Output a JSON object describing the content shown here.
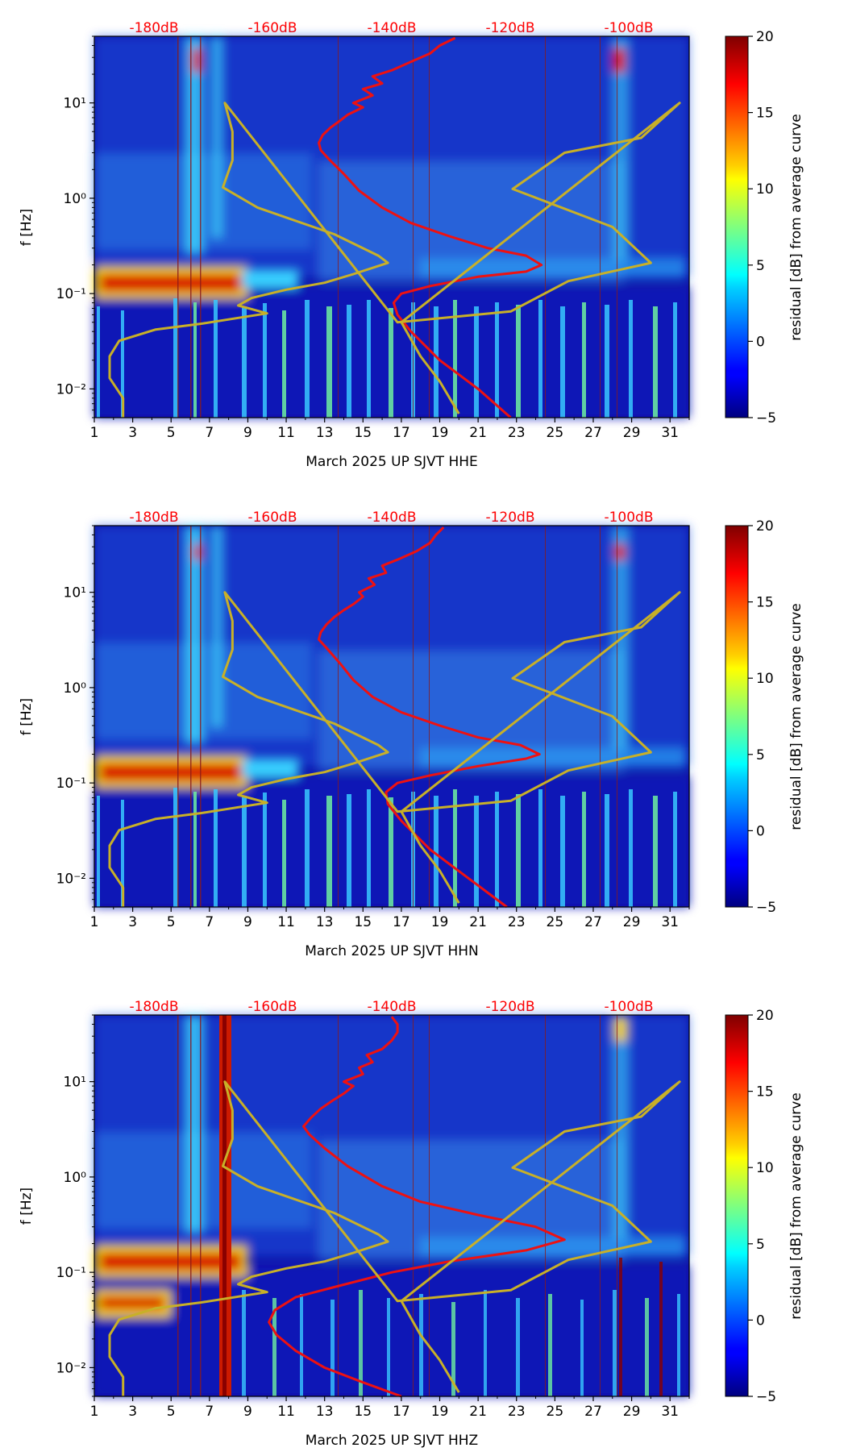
{
  "colors": {
    "noise_top_text": "#ff0000",
    "average_curve": "#ee1111",
    "model_curve": "#c8b028",
    "axis": "#000000",
    "spectrogram_background": "#00008b"
  },
  "colorbar": {
    "label": "residual [dB] from average curve",
    "ticks": [
      "20",
      "15",
      "10",
      "5",
      "0",
      "−5"
    ],
    "tick_values": [
      20,
      15,
      10,
      5,
      0,
      -5
    ],
    "range": [
      -5,
      20
    ],
    "colormap": "jet"
  },
  "chart_data": [
    {
      "type": "heatmap",
      "xlabel": "March 2025 UP SJVT  HHE",
      "ylabel": "f [Hz]",
      "x_ticks": [
        "1",
        "3",
        "5",
        "7",
        "9",
        "11",
        "13",
        "15",
        "17",
        "19",
        "21",
        "23",
        "25",
        "27",
        "29",
        "31"
      ],
      "x_range_days": [
        1,
        32
      ],
      "y_ticks": [
        "10⁻²",
        "10⁻¹",
        "10⁰",
        "10¹"
      ],
      "y_range_hz": [
        0.005,
        50
      ],
      "y_scale": "log",
      "top_labels": [
        "-180dB",
        "-160dB",
        "-140dB",
        "-120dB",
        "-100dB"
      ],
      "top_label_days": [
        5,
        11,
        17,
        23,
        29
      ],
      "grid": false,
      "series": [
        {
          "curve": "average",
          "points": [
            [
              22.7,
              0.005
            ],
            [
              21,
              0.01
            ],
            [
              19,
              0.02
            ],
            [
              17.5,
              0.04
            ],
            [
              16.8,
              0.06
            ],
            [
              16.6,
              0.08
            ],
            [
              17,
              0.1
            ],
            [
              18.5,
              0.12
            ],
            [
              21,
              0.15
            ],
            [
              23.5,
              0.17
            ],
            [
              24.3,
              0.2
            ],
            [
              23.5,
              0.25
            ],
            [
              21.5,
              0.3
            ],
            [
              19.5,
              0.4
            ],
            [
              17.5,
              0.55
            ],
            [
              16,
              0.8
            ],
            [
              14.8,
              1.2
            ],
            [
              14,
              1.8
            ],
            [
              13.2,
              2.6
            ],
            [
              12.8,
              3.2
            ],
            [
              12.7,
              3.8
            ],
            [
              12.9,
              4.6
            ],
            [
              13.3,
              5.5
            ],
            [
              13.8,
              6.5
            ],
            [
              14.2,
              7.5
            ],
            [
              15,
              9
            ],
            [
              14.5,
              10
            ],
            [
              15.5,
              12
            ],
            [
              15,
              14
            ],
            [
              16,
              16
            ],
            [
              15.5,
              19
            ],
            [
              16.5,
              22
            ],
            [
              17.5,
              27
            ],
            [
              18.5,
              33
            ],
            [
              19,
              40
            ],
            [
              19.8,
              48
            ]
          ]
        },
        {
          "curve": "model",
          "points": [
            [
              2.5,
              0.005
            ],
            [
              2.5,
              0.008
            ],
            [
              1.8,
              0.013
            ],
            [
              1.8,
              0.022
            ],
            [
              2.3,
              0.032
            ],
            [
              4.2,
              0.042
            ],
            [
              6.5,
              0.048
            ],
            [
              10,
              0.062
            ],
            [
              8.5,
              0.075
            ],
            [
              9.2,
              0.09
            ],
            [
              11,
              0.11
            ],
            [
              13,
              0.13
            ],
            [
              14.5,
              0.16
            ],
            [
              16.3,
              0.21
            ],
            [
              15.8,
              0.25
            ],
            [
              13.5,
              0.42
            ],
            [
              9.5,
              0.8
            ],
            [
              7.7,
              1.3
            ],
            [
              8.2,
              2.5
            ],
            [
              8.2,
              5
            ],
            [
              7.8,
              10
            ],
            [
              16.8,
              0.05
            ],
            [
              22.7,
              0.065
            ],
            [
              25.7,
              0.135
            ],
            [
              30,
              0.21
            ],
            [
              28,
              0.5
            ],
            [
              22.8,
              1.25
            ],
            [
              25.5,
              3
            ],
            [
              29.5,
              4.3
            ],
            [
              31.5,
              10
            ],
            [
              17,
              0.05
            ],
            [
              18,
              0.022
            ],
            [
              19,
              0.012
            ],
            [
              20,
              0.0055
            ]
          ]
        }
      ]
    },
    {
      "type": "heatmap",
      "xlabel": "March 2025 UP SJVT  HHN",
      "ylabel": "f [Hz]",
      "x_ticks": [
        "1",
        "3",
        "5",
        "7",
        "9",
        "11",
        "13",
        "15",
        "17",
        "19",
        "21",
        "23",
        "25",
        "27",
        "29",
        "31"
      ],
      "x_range_days": [
        1,
        32
      ],
      "y_ticks": [
        "10⁻²",
        "10⁻¹",
        "10⁰",
        "10¹"
      ],
      "y_range_hz": [
        0.005,
        50
      ],
      "y_scale": "log",
      "top_labels": [
        "-180dB",
        "-160dB",
        "-140dB",
        "-120dB",
        "-100dB"
      ],
      "top_label_days": [
        5,
        11,
        17,
        23,
        29
      ],
      "grid": false,
      "series": [
        {
          "curve": "average",
          "points": [
            [
              22.5,
              0.005
            ],
            [
              20.5,
              0.01
            ],
            [
              18.5,
              0.02
            ],
            [
              17,
              0.04
            ],
            [
              16.3,
              0.06
            ],
            [
              16.2,
              0.08
            ],
            [
              16.8,
              0.1
            ],
            [
              18.5,
              0.12
            ],
            [
              21,
              0.15
            ],
            [
              23.5,
              0.18
            ],
            [
              24.2,
              0.2
            ],
            [
              23.2,
              0.25
            ],
            [
              21,
              0.3
            ],
            [
              19,
              0.4
            ],
            [
              17,
              0.55
            ],
            [
              15.5,
              0.8
            ],
            [
              14.5,
              1.2
            ],
            [
              13.8,
              1.8
            ],
            [
              13.1,
              2.6
            ],
            [
              12.7,
              3.2
            ],
            [
              12.8,
              3.8
            ],
            [
              13.1,
              4.6
            ],
            [
              13.5,
              5.5
            ],
            [
              14,
              6.5
            ],
            [
              14.5,
              7.5
            ],
            [
              15,
              9
            ],
            [
              14.8,
              10
            ],
            [
              15.6,
              12
            ],
            [
              15.3,
              14
            ],
            [
              16.2,
              16
            ],
            [
              16,
              19
            ],
            [
              16.8,
              22
            ],
            [
              17.8,
              27
            ],
            [
              18.5,
              33
            ],
            [
              18.8,
              40
            ],
            [
              19.2,
              48
            ]
          ]
        },
        {
          "curve": "model",
          "points": [
            [
              2.5,
              0.005
            ],
            [
              2.5,
              0.008
            ],
            [
              1.8,
              0.013
            ],
            [
              1.8,
              0.022
            ],
            [
              2.3,
              0.032
            ],
            [
              4.2,
              0.042
            ],
            [
              6.5,
              0.048
            ],
            [
              10,
              0.062
            ],
            [
              8.5,
              0.075
            ],
            [
              9.2,
              0.09
            ],
            [
              11,
              0.11
            ],
            [
              13,
              0.13
            ],
            [
              14.5,
              0.16
            ],
            [
              16.3,
              0.21
            ],
            [
              15.8,
              0.25
            ],
            [
              13.5,
              0.42
            ],
            [
              9.5,
              0.8
            ],
            [
              7.7,
              1.3
            ],
            [
              8.2,
              2.5
            ],
            [
              8.2,
              5
            ],
            [
              7.8,
              10
            ],
            [
              16.8,
              0.05
            ],
            [
              22.7,
              0.065
            ],
            [
              25.7,
              0.135
            ],
            [
              30,
              0.21
            ],
            [
              28,
              0.5
            ],
            [
              22.8,
              1.25
            ],
            [
              25.5,
              3
            ],
            [
              29.5,
              4.3
            ],
            [
              31.5,
              10
            ],
            [
              17,
              0.05
            ],
            [
              18,
              0.022
            ],
            [
              19,
              0.012
            ],
            [
              20,
              0.0055
            ]
          ]
        }
      ]
    },
    {
      "type": "heatmap",
      "xlabel": "March 2025 UP SJVT  HHZ",
      "ylabel": "f [Hz]",
      "x_ticks": [
        "1",
        "3",
        "5",
        "7",
        "9",
        "11",
        "13",
        "15",
        "17",
        "19",
        "21",
        "23",
        "25",
        "27",
        "29",
        "31"
      ],
      "x_range_days": [
        1,
        32
      ],
      "y_ticks": [
        "10⁻²",
        "10⁻¹",
        "10⁰",
        "10¹"
      ],
      "y_range_hz": [
        0.005,
        50
      ],
      "y_scale": "log",
      "top_labels": [
        "-180dB",
        "-160dB",
        "-140dB",
        "-120dB",
        "-100dB"
      ],
      "top_label_days": [
        5,
        11,
        17,
        23,
        29
      ],
      "grid": false,
      "series": [
        {
          "curve": "average",
          "points": [
            [
              17,
              0.005
            ],
            [
              15,
              0.007
            ],
            [
              13,
              0.01
            ],
            [
              11.5,
              0.015
            ],
            [
              10.5,
              0.022
            ],
            [
              10.1,
              0.03
            ],
            [
              10.4,
              0.04
            ],
            [
              11.5,
              0.055
            ],
            [
              13.5,
              0.07
            ],
            [
              16.5,
              0.1
            ],
            [
              19.5,
              0.13
            ],
            [
              23.5,
              0.17
            ],
            [
              25.5,
              0.22
            ],
            [
              24,
              0.3
            ],
            [
              21,
              0.4
            ],
            [
              18,
              0.55
            ],
            [
              16,
              0.8
            ],
            [
              14.2,
              1.3
            ],
            [
              13,
              2
            ],
            [
              12.2,
              2.8
            ],
            [
              11.9,
              3.4
            ],
            [
              12.3,
              4.2
            ],
            [
              12.8,
              5.2
            ],
            [
              13.4,
              6.3
            ],
            [
              14,
              7.5
            ],
            [
              14.5,
              9
            ],
            [
              14,
              10
            ],
            [
              15,
              12
            ],
            [
              14.8,
              14
            ],
            [
              15.5,
              16
            ],
            [
              15.2,
              19
            ],
            [
              16,
              22
            ],
            [
              16.5,
              27
            ],
            [
              16.8,
              33
            ],
            [
              16.8,
              40
            ],
            [
              16.5,
              48
            ]
          ]
        },
        {
          "curve": "model",
          "points": [
            [
              2.5,
              0.005
            ],
            [
              2.5,
              0.008
            ],
            [
              1.8,
              0.013
            ],
            [
              1.8,
              0.022
            ],
            [
              2.3,
              0.032
            ],
            [
              4.2,
              0.042
            ],
            [
              6.5,
              0.048
            ],
            [
              10,
              0.062
            ],
            [
              8.5,
              0.075
            ],
            [
              9.2,
              0.09
            ],
            [
              11,
              0.11
            ],
            [
              13,
              0.13
            ],
            [
              14.5,
              0.16
            ],
            [
              16.3,
              0.21
            ],
            [
              15.8,
              0.25
            ],
            [
              13.5,
              0.42
            ],
            [
              9.5,
              0.8
            ],
            [
              7.7,
              1.3
            ],
            [
              8.2,
              2.5
            ],
            [
              8.2,
              5
            ],
            [
              7.8,
              10
            ],
            [
              16.8,
              0.05
            ],
            [
              22.7,
              0.065
            ],
            [
              25.7,
              0.135
            ],
            [
              30,
              0.21
            ],
            [
              28,
              0.5
            ],
            [
              22.8,
              1.25
            ],
            [
              25.5,
              3
            ],
            [
              29.5,
              4.3
            ],
            [
              31.5,
              10
            ],
            [
              17,
              0.05
            ],
            [
              18,
              0.022
            ],
            [
              19,
              0.012
            ],
            [
              20,
              0.0055
            ]
          ]
        }
      ]
    }
  ]
}
